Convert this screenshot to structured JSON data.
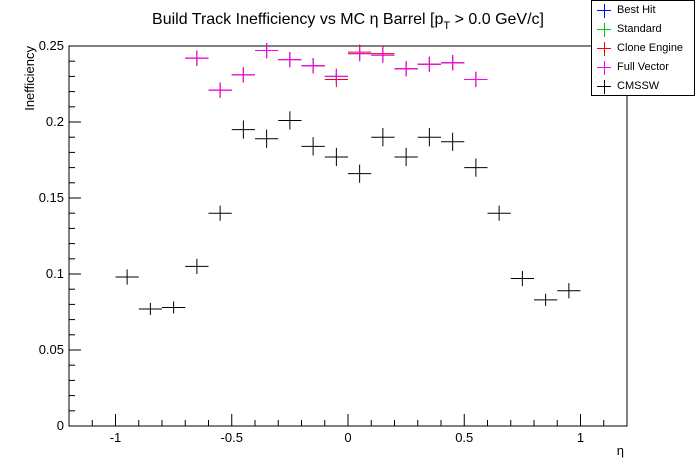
{
  "chart_data": {
    "type": "scatter",
    "title": "Build Track Inefficiency vs MC η Barrel [p",
    "title_sub": "T",
    "title_tail": " > 0.0 GeV/c]",
    "xlabel": "η",
    "ylabel": "Inefficiency",
    "xlim": [
      -1.2,
      1.2
    ],
    "ylim": [
      0,
      0.25
    ],
    "x_ticks": [
      -1,
      -0.5,
      0,
      0.5,
      1
    ],
    "x_tick_labels": [
      "-1",
      "-0.5",
      "0",
      "0.5",
      "1"
    ],
    "y_ticks": [
      0,
      0.05,
      0.1,
      0.15,
      0.2,
      0.25
    ],
    "y_tick_labels": [
      "0",
      "0.05",
      "0.1",
      "0.15",
      "0.2",
      "0.25"
    ],
    "bin_half_width": 0.05,
    "legend_position": "top-right",
    "series": [
      {
        "name": "Best Hit",
        "color": "#0000ff",
        "x": [
          -0.65,
          -0.55,
          -0.45,
          -0.35,
          -0.25,
          -0.15,
          -0.05,
          0.05,
          0.15,
          0.25,
          0.35,
          0.45,
          0.55
        ],
        "y": [
          0.242,
          0.221,
          0.231,
          0.247,
          0.241,
          0.237,
          0.23,
          0.245,
          0.244,
          0.235,
          0.238,
          0.239,
          0.228
        ],
        "err": [
          0.005,
          0.005,
          0.005,
          0.005,
          0.005,
          0.005,
          0.005,
          0.005,
          0.005,
          0.005,
          0.005,
          0.005,
          0.005
        ]
      },
      {
        "name": "Standard",
        "color": "#00cc00",
        "x": [
          -0.65,
          -0.55,
          -0.45,
          -0.35,
          -0.25,
          -0.15,
          -0.05,
          0.05,
          0.15,
          0.25,
          0.35,
          0.45,
          0.55
        ],
        "y": [
          0.242,
          0.221,
          0.231,
          0.247,
          0.241,
          0.237,
          0.23,
          0.245,
          0.244,
          0.235,
          0.238,
          0.239,
          0.228
        ],
        "err": [
          0.005,
          0.005,
          0.005,
          0.005,
          0.005,
          0.005,
          0.005,
          0.005,
          0.005,
          0.005,
          0.005,
          0.005,
          0.005
        ]
      },
      {
        "name": "Clone Engine",
        "color": "#ff0000",
        "x": [
          -0.65,
          -0.55,
          -0.45,
          -0.35,
          -0.25,
          -0.15,
          -0.05,
          0.05,
          0.15,
          0.25,
          0.35,
          0.45,
          0.55
        ],
        "y": [
          0.242,
          0.221,
          0.231,
          0.247,
          0.241,
          0.237,
          0.228,
          0.246,
          0.245,
          0.235,
          0.238,
          0.239,
          0.228
        ],
        "err": [
          0.005,
          0.005,
          0.005,
          0.005,
          0.005,
          0.005,
          0.005,
          0.005,
          0.005,
          0.005,
          0.005,
          0.005,
          0.005
        ]
      },
      {
        "name": "Full Vector",
        "color": "#ff00ff",
        "x": [
          -0.65,
          -0.55,
          -0.45,
          -0.35,
          -0.25,
          -0.15,
          -0.05,
          0.05,
          0.15,
          0.25,
          0.35,
          0.45,
          0.55
        ],
        "y": [
          0.242,
          0.221,
          0.231,
          0.247,
          0.241,
          0.237,
          0.23,
          0.245,
          0.244,
          0.235,
          0.238,
          0.239,
          0.228
        ],
        "err": [
          0.005,
          0.005,
          0.005,
          0.005,
          0.005,
          0.005,
          0.005,
          0.005,
          0.005,
          0.005,
          0.005,
          0.005,
          0.005
        ]
      },
      {
        "name": "CMSSW",
        "color": "#000000",
        "x": [
          -0.95,
          -0.85,
          -0.75,
          -0.65,
          -0.55,
          -0.45,
          -0.35,
          -0.25,
          -0.15,
          -0.05,
          0.05,
          0.15,
          0.25,
          0.35,
          0.45,
          0.55,
          0.65,
          0.75,
          0.85,
          0.95
        ],
        "y": [
          0.098,
          0.077,
          0.078,
          0.105,
          0.14,
          0.195,
          0.189,
          0.201,
          0.184,
          0.177,
          0.166,
          0.19,
          0.177,
          0.19,
          0.187,
          0.17,
          0.14,
          0.097,
          0.083,
          0.089
        ],
        "err": [
          0.005,
          0.004,
          0.004,
          0.005,
          0.005,
          0.006,
          0.006,
          0.006,
          0.006,
          0.006,
          0.006,
          0.006,
          0.006,
          0.006,
          0.006,
          0.006,
          0.005,
          0.005,
          0.004,
          0.005
        ]
      }
    ]
  }
}
